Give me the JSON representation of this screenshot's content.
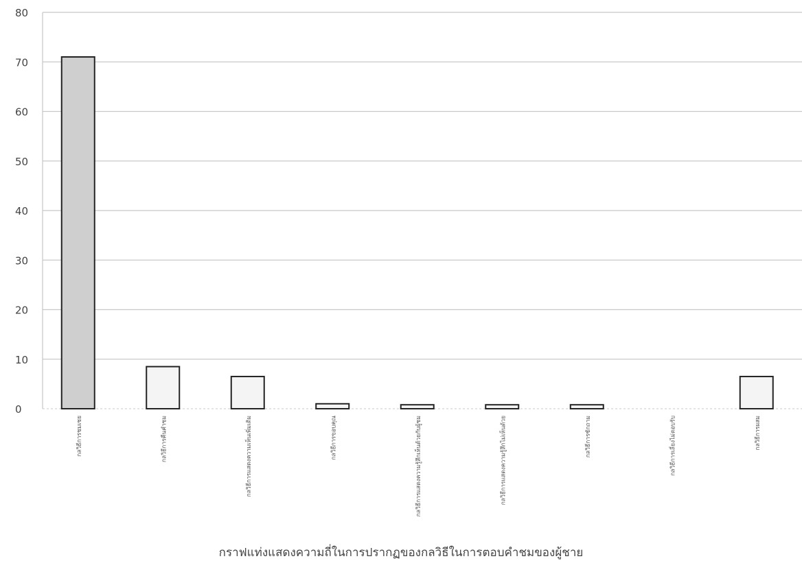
{
  "chart_data": {
    "type": "bar",
    "categories": [
      "กลวิธีการชมเชย",
      "กลวิธีการคืนคำชม",
      "กลวิธีการแสดงความเห็นเพิ่มเติม",
      "กลวิธีการขอบคุณ",
      "กลวิธีการแสดงความรู้สึกเห็นด้วยกับผู้ชม",
      "กลวิธีการแสดงความรู้สึกไม่เห็นด้วย",
      "กลวิธีการซักถาม",
      "กลวิธีการเลี่ยงไม่ตอบรับ",
      "กลวิธีการผสม"
    ],
    "values": [
      71,
      8.5,
      6.5,
      1,
      0.8,
      0.8,
      0.8,
      0,
      6.5
    ],
    "ylim": [
      0,
      80
    ],
    "yticks": [
      "0",
      "10",
      "20",
      "30",
      "40",
      "50",
      "60",
      "70",
      "80"
    ],
    "title": "",
    "xlabel": "",
    "ylabel": "",
    "grid": true,
    "bar_fill": "#d6d6d6",
    "bar_stroke": "#222222",
    "grid_color": "#c8c8c8"
  },
  "caption": "กราฟแท่งแสดงความถี่ในการปรากฏของกลวิธีในการตอบคำชมของผู้ชาย"
}
